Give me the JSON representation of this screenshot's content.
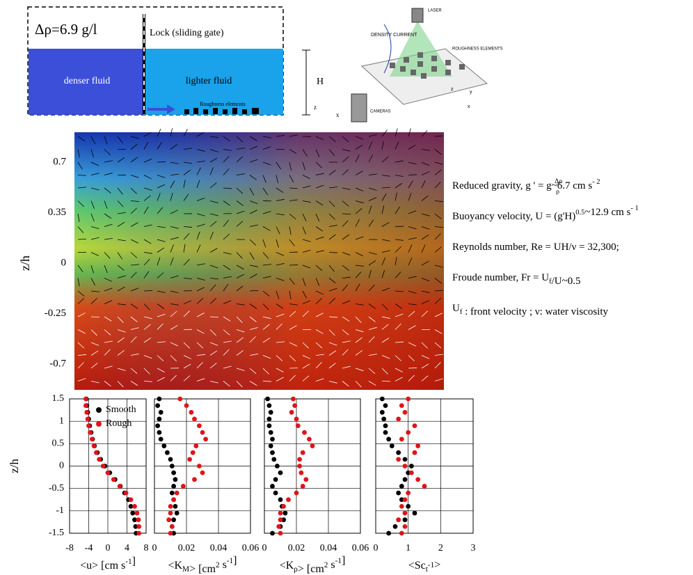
{
  "schematic": {
    "density_difference": "Δρ=6.9 g/l",
    "lock": "Lock (sliding gate)",
    "left_fluid": "denser fluid",
    "right_fluid": "lighter fluid",
    "roughness": "Roughness elements",
    "height": "H",
    "axis_z": "z",
    "axis_x": "x"
  },
  "setup": {
    "current": "DENSITY CURRENT",
    "laser": "LASER",
    "elements": "ROUGHNESS ELEMENTS",
    "cameras": "CAMERAS",
    "axis_z": "z",
    "axis_y": "y",
    "axis_x": "x"
  },
  "piv": {
    "ylabel": "z/h",
    "yticks": [
      0.7,
      0.35,
      0,
      -0.25,
      -0.7
    ]
  },
  "parameters": [
    [
      {
        "text": "Reduced gravity, g ' = g"
      },
      {
        "frac": [
          "Δρ",
          "ρ"
        ]
      },
      {
        "text": "~6.7 cm s"
      },
      {
        "sup": "- 2"
      }
    ],
    [
      {
        "text": "Buoyancy velocity, U = (g'H)"
      },
      {
        "sup": "0.5"
      },
      {
        "text": "~12.9 cm s"
      },
      {
        "sup": "- 1"
      }
    ],
    [
      {
        "text": "Reynolds number, Re = UH/ν = 32,300;"
      }
    ],
    [
      {
        "text": "Froude number, Fr = U"
      },
      {
        "sub": "f"
      },
      {
        "text": "/U~0.5"
      }
    ],
    [
      {
        "text": "U"
      },
      {
        "sub": "f"
      },
      {
        "text": " : front velocity ; ν: water viscosity"
      }
    ]
  ],
  "chart_data": [
    {
      "type": "scatter",
      "ylabel": "z/h",
      "xlabel": [
        {
          "text": "<u> [cm s"
        },
        {
          "sup": "-1"
        },
        {
          "text": "]"
        }
      ],
      "xlim": [
        -8,
        8
      ],
      "xticks": [
        -8,
        -4,
        0,
        4,
        8
      ],
      "ylim": [
        -1.5,
        1.5
      ],
      "yticks": [
        -1.5,
        -1,
        -0.5,
        0,
        0.5,
        1,
        1.5
      ],
      "grid": true,
      "legend": "upper right",
      "series": [
        {
          "name": "Smooth",
          "color": "#000000",
          "x": [
            -4.5,
            -4.4,
            -4.2,
            -4,
            -3.8,
            -3.5,
            -3.2,
            -2.8,
            -2.2,
            -1.5,
            -0.6,
            0.4,
            1.5,
            2.6,
            3.5,
            4.3,
            4.8,
            5.2,
            5.6,
            5.8,
            5.9
          ],
          "values": [
            1.5,
            1.35,
            1.2,
            1.05,
            0.9,
            0.75,
            0.6,
            0.45,
            0.3,
            0.15,
            0,
            -0.15,
            -0.3,
            -0.45,
            -0.6,
            -0.75,
            -0.9,
            -1.05,
            -1.2,
            -1.35,
            -1.5
          ]
        },
        {
          "name": "Rough",
          "color": "#e0141b",
          "x": [
            -4.6,
            -4.6,
            -4.4,
            -4.2,
            -4,
            -3.7,
            -3.3,
            -2.9,
            -2.4,
            -1.8,
            -1,
            0,
            1.2,
            2.5,
            3.8,
            4.8,
            5.6,
            6.1,
            6.4,
            6.5,
            6.5
          ],
          "values": [
            1.5,
            1.35,
            1.2,
            1.05,
            0.9,
            0.75,
            0.6,
            0.45,
            0.3,
            0.15,
            0,
            -0.15,
            -0.3,
            -0.45,
            -0.6,
            -0.75,
            -0.9,
            -1.05,
            -1.2,
            -1.35,
            -1.5
          ]
        }
      ]
    },
    {
      "type": "scatter",
      "xlabel": [
        {
          "text": "<K"
        },
        {
          "sub": "M"
        },
        {
          "text": "> [cm"
        },
        {
          "sup": "2"
        },
        {
          "text": " s"
        },
        {
          "sup": "-1"
        },
        {
          "text": "]"
        }
      ],
      "xlim": [
        0,
        0.06
      ],
      "xticks": [
        0,
        0.02,
        0.04,
        0.06
      ],
      "ylim": [
        -1.5,
        1.5
      ],
      "yticks": [
        -1.5,
        -1,
        -0.5,
        0,
        0.5,
        1,
        1.5
      ],
      "grid": true,
      "series": [
        {
          "color": "#000000",
          "x": [
            0.003,
            0.002,
            0.004,
            0.003,
            0.002,
            0.003,
            0.004,
            0.006,
            0.008,
            0.01,
            0.011,
            0.012,
            0.013,
            0.012,
            0.011,
            0.012,
            0.013,
            0.014,
            0.012,
            0.011,
            0.012
          ],
          "values": [
            1.5,
            1.35,
            1.2,
            1.05,
            0.9,
            0.75,
            0.6,
            0.45,
            0.3,
            0.15,
            0,
            -0.15,
            -0.3,
            -0.45,
            -0.6,
            -0.75,
            -0.9,
            -1.05,
            -1.2,
            -1.35,
            -1.5
          ]
        },
        {
          "color": "#e0141b",
          "x": [
            0.016,
            0.02,
            0.023,
            0.025,
            0.028,
            0.03,
            0.032,
            0.026,
            0.024,
            0.022,
            0.028,
            0.03,
            0.025,
            0.018,
            0.014,
            0.012,
            0.01,
            0.01,
            0.009,
            0.011,
            0.01
          ],
          "values": [
            1.5,
            1.35,
            1.2,
            1.05,
            0.9,
            0.75,
            0.6,
            0.45,
            0.3,
            0.15,
            0,
            -0.15,
            -0.3,
            -0.45,
            -0.6,
            -0.75,
            -0.9,
            -1.05,
            -1.2,
            -1.35,
            -1.5
          ]
        }
      ]
    },
    {
      "type": "scatter",
      "xlabel": [
        {
          "text": "<K"
        },
        {
          "sub": "ρ"
        },
        {
          "text": "> [cm"
        },
        {
          "sup": "2"
        },
        {
          "text": " s"
        },
        {
          "sup": "-1"
        },
        {
          "text": "]"
        }
      ],
      "xlim": [
        0,
        0.06
      ],
      "xticks": [
        0,
        0.02,
        0.04,
        0.06
      ],
      "ylim": [
        -1.5,
        1.5
      ],
      "yticks": [
        -1.5,
        -1,
        -0.5,
        0,
        0.5,
        1,
        1.5
      ],
      "grid": true,
      "series": [
        {
          "color": "#000000",
          "x": [
            0.002,
            0.003,
            0.004,
            0.003,
            0.003,
            0.004,
            0.005,
            0.004,
            0.005,
            0.006,
            0.008,
            0.01,
            0.007,
            0.005,
            0.007,
            0.01,
            0.011,
            0.013,
            0.012,
            0.01,
            0.005
          ],
          "values": [
            1.5,
            1.35,
            1.2,
            1.05,
            0.9,
            0.75,
            0.6,
            0.45,
            0.3,
            0.15,
            0,
            -0.15,
            -0.3,
            -0.45,
            -0.6,
            -0.75,
            -0.9,
            -1.05,
            -1.2,
            -1.35,
            -1.5
          ]
        },
        {
          "color": "#e0141b",
          "x": [
            0.018,
            0.019,
            0.017,
            0.02,
            0.021,
            0.025,
            0.028,
            0.03,
            0.024,
            0.022,
            0.022,
            0.023,
            0.026,
            0.024,
            0.02,
            0.015,
            0.012,
            0.01,
            0.01,
            0.009,
            0.01
          ],
          "values": [
            1.5,
            1.35,
            1.2,
            1.05,
            0.9,
            0.75,
            0.6,
            0.45,
            0.3,
            0.15,
            0,
            -0.15,
            -0.3,
            -0.45,
            -0.6,
            -0.75,
            -0.9,
            -1.05,
            -1.2,
            -1.35,
            -1.5
          ]
        }
      ]
    },
    {
      "type": "scatter",
      "xlabel": [
        {
          "text": "<Sc"
        },
        {
          "sub": "t"
        },
        {
          "sup": "-1"
        },
        {
          "text": ">"
        }
      ],
      "xlim": [
        0,
        3
      ],
      "xticks": [
        0,
        1,
        2,
        3
      ],
      "ylim": [
        -1.5,
        1.5
      ],
      "yticks": [
        -1.5,
        -1,
        -0.5,
        0,
        0.5,
        1,
        1.5
      ],
      "grid": true,
      "series": [
        {
          "color": "#000000",
          "x": [
            0.2,
            0.3,
            0.2,
            0.25,
            0.3,
            0.3,
            0.4,
            0.5,
            0.7,
            0.9,
            1.1,
            1,
            0.9,
            0.8,
            0.7,
            0.8,
            1,
            1.2,
            0.9,
            0.6,
            0.4
          ],
          "values": [
            1.5,
            1.35,
            1.2,
            1.05,
            0.9,
            0.75,
            0.6,
            0.45,
            0.3,
            0.15,
            0,
            -0.15,
            -0.3,
            -0.45,
            -0.6,
            -0.75,
            -0.9,
            -1.05,
            -1.2,
            -1.35,
            -1.5
          ]
        },
        {
          "color": "#e0141b",
          "x": [
            1,
            0.8,
            0.9,
            0.7,
            1.2,
            1,
            0.8,
            1.3,
            1.2,
            0.7,
            0.9,
            1.1,
            1.3,
            1.5,
            1,
            0.9,
            0.8,
            0.9,
            0.7,
            0.9,
            0.8
          ],
          "values": [
            1.5,
            1.35,
            1.2,
            1.05,
            0.9,
            0.75,
            0.6,
            0.45,
            0.3,
            0.15,
            0,
            -0.15,
            -0.3,
            -0.45,
            -0.6,
            -0.75,
            -0.9,
            -1.05,
            -1.2,
            -1.35,
            -1.5
          ]
        }
      ]
    }
  ]
}
